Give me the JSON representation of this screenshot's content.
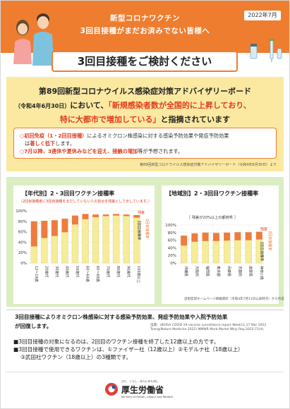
{
  "header": {
    "date": "2022年7月",
    "line1": "新型コロナワクチン",
    "line2": "3回目接種がまだお済みでない皆様へ",
    "title": "3回目接種をご検討ください"
  },
  "advisory": {
    "heading": "第89回新型コロナウイルス感染症対策アドバイザリーボード",
    "date_note": "（令和4年6月30日）",
    "lead": "において、",
    "quote_1": "「新規感染者数が全国的に上昇しており、",
    "quote_2": "特に大都市で増加している」",
    "tail": "と指摘されています",
    "point_1a": "○初回免疫（1・2回目接種）",
    "point_1b": "によるオミクロン株感染に対する感染予防効果や発症予防効果",
    "point_1c": "は",
    "point_1d": "著しく低下",
    "point_1e": "します。",
    "point_2a": "○7月以降、3連休や夏休みなどを迎え、接触の増加",
    "point_2b": "等が予想されます。",
    "source": "第89回新型コロナウイルス感染症対策アドバイザリーボード（令和4年6月30日）より"
  },
  "chart_data": [
    {
      "type": "bar",
      "title": "【年代別】2・3回目ワクチン接種率",
      "subtitle": "（2回目接種者に3回目接種をまだしていない人の割合を残差として示しています。）",
      "categories": [
        "12〜19歳",
        "20歳代",
        "30歳代",
        "40歳代",
        "50歳代",
        "60〜64歳",
        "65〜69歳",
        "70歳代",
        "80歳代",
        "90歳代",
        "100歳以上"
      ],
      "series": [
        {
          "name": "3回目接種率",
          "values": [
            32,
            48,
            52,
            59,
            74,
            84,
            88,
            90,
            91,
            90,
            87
          ]
        },
        {
          "name": "残差",
          "values": [
            48,
            33,
            30,
            26,
            17,
            10,
            5,
            3,
            3,
            3,
            5
          ]
        }
      ],
      "annotations": [
        "残差",
        "2回目接種率",
        "3回目接種率"
      ],
      "ylim": [
        0,
        100
      ],
      "yticks": [
        "0%",
        "20%",
        "40%",
        "60%",
        "80%",
        "100%"
      ],
      "colors": {
        "third": "#f6ec9a",
        "residual": "#ef7b3c"
      }
    },
    {
      "type": "bar",
      "title": "【地域別】2・3回目ワクチン接種率",
      "subtitle": "［ 残差が20%以上の都府県 ］",
      "categories": [
        "沖縄県",
        "大阪府",
        "福岡県",
        "東京都",
        "兵庫県",
        "京都府",
        "滋賀県",
        "神奈川県"
      ],
      "series": [
        {
          "name": "3回目接種率",
          "values": [
            46,
            56,
            58,
            58,
            59,
            60,
            60,
            62
          ]
        },
        {
          "name": "残差",
          "values": [
            26,
            22,
            22,
            21,
            21,
            21,
            21,
            20
          ]
        }
      ],
      "annotations": [
        "残差",
        "2回目接種率",
        "3回目接種率"
      ],
      "ylim": [
        0,
        100
      ],
      "yticks": [
        "0%",
        "20%",
        "40%",
        "60%",
        "80%",
        "100%"
      ],
      "colors": {
        "third": "#f6ec9a",
        "residual": "#ef7b3c"
      }
    }
  ],
  "chart_notes": {
    "note": "首相官邸ホームページ掲載資料（令和4年7月11日公表時点）から作成"
  },
  "effect": {
    "line1": "3回目接種によりオミクロン株感染に対する感染予防効果、発症予防効果や入院予防効果",
    "line2": "が回復します。",
    "source": "出典：UKHSA COVID-19 vaccine surveillance report Week11,17 Mar 2022 Tseng(Nature Medicine 2022) MMWR Morb Mortal Wkly Rep.2022;71(4)."
  },
  "bullets": {
    "b1": "■3回目接種の対象になるのは、2回目のワクチン接種を終了した12歳以上の方です。",
    "b2": "■3回目接種で使用できるワクチンは、①ファイザー社（12歳以上）②モデルナ社（18歳以上）",
    "b3": "③武田社ワクチン（18歳以上）の3種類です。"
  },
  "footer": {
    "tagline": "ひと、くらし、みらいのために",
    "name": "厚生労働省",
    "english": "Ministry of Health, Labour and Welfare"
  }
}
